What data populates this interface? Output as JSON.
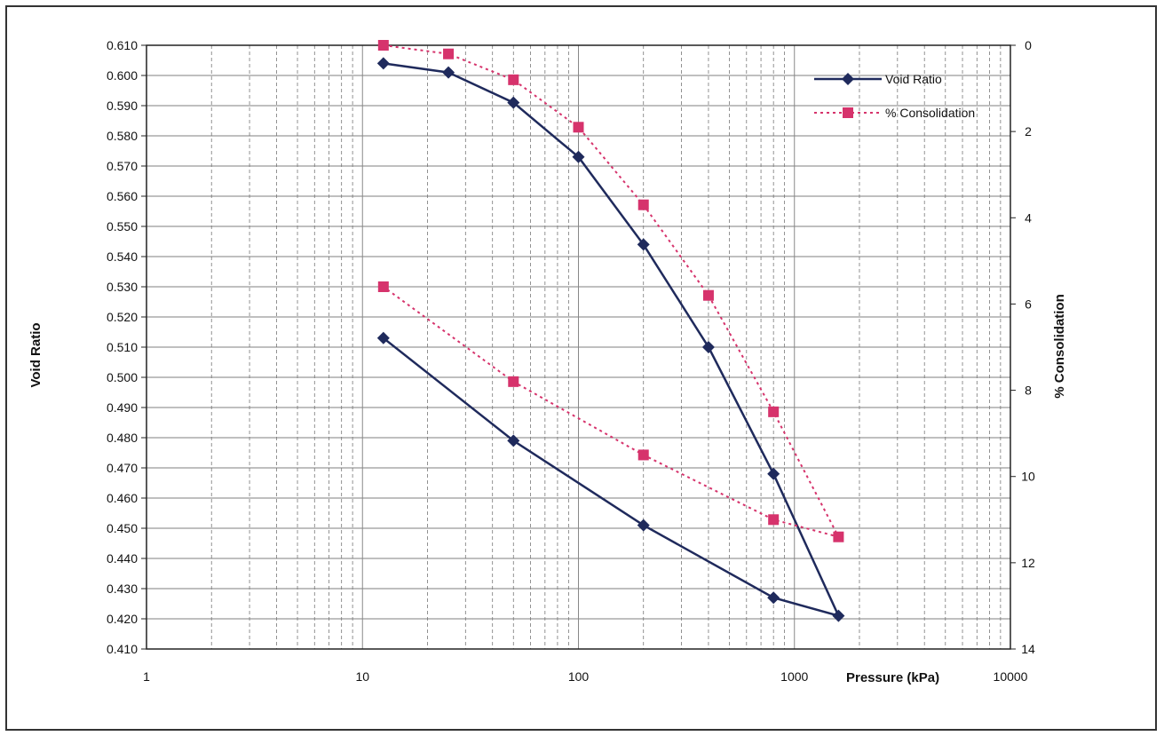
{
  "chart_data": {
    "type": "line",
    "xscale": "log",
    "xlim": [
      1,
      10000
    ],
    "x_ticks": [
      "1",
      "10",
      "100",
      "1000",
      "10000"
    ],
    "xlabel": "Pressure (kPa)",
    "ylabel": "Void Ratio",
    "ylim": [
      0.41,
      0.61
    ],
    "y_ticks": [
      "0.610",
      "0.600",
      "0.590",
      "0.580",
      "0.570",
      "0.560",
      "0.550",
      "0.540",
      "0.530",
      "0.520",
      "0.510",
      "0.500",
      "0.490",
      "0.480",
      "0.470",
      "0.460",
      "0.450",
      "0.440",
      "0.430",
      "0.420",
      "0.410"
    ],
    "y2label": "% Consolidation",
    "y2lim": [
      0,
      14
    ],
    "y2_inverted": true,
    "y2_ticks": [
      "0",
      "2",
      "4",
      "6",
      "8",
      "10",
      "12",
      "14"
    ],
    "grid": true,
    "legend_position": "top-right",
    "series": [
      {
        "name": "Void Ratio",
        "axis": "left",
        "color": "#1f2a5c",
        "marker": "diamond",
        "line_style": "solid",
        "points": [
          [
            12.5,
            0.604
          ],
          [
            25,
            0.601
          ],
          [
            50,
            0.591
          ],
          [
            100,
            0.573
          ],
          [
            200,
            0.544
          ],
          [
            400,
            0.51
          ],
          [
            800,
            0.468
          ],
          [
            1600,
            0.421
          ],
          [
            800,
            0.427
          ],
          [
            200,
            0.451
          ],
          [
            50,
            0.479
          ],
          [
            12.5,
            0.513
          ]
        ]
      },
      {
        "name": "% Consolidation",
        "axis": "right",
        "color": "#d6336c",
        "marker": "square",
        "line_style": "dotted",
        "points": [
          [
            12.5,
            0.0
          ],
          [
            25,
            0.2
          ],
          [
            50,
            0.8
          ],
          [
            100,
            1.9
          ],
          [
            200,
            3.7
          ],
          [
            400,
            5.8
          ],
          [
            800,
            8.5
          ],
          [
            1600,
            11.4
          ],
          [
            800,
            11.0
          ],
          [
            200,
            9.5
          ],
          [
            50,
            7.8
          ],
          [
            12.5,
            5.6
          ]
        ]
      }
    ]
  }
}
